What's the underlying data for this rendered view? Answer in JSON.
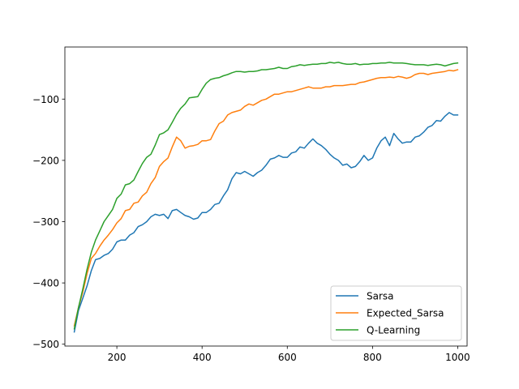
{
  "chart_data": {
    "type": "line",
    "title": "",
    "xlabel": "",
    "ylabel": "",
    "xlim": [
      78,
      1022
    ],
    "ylim": [
      -503,
      -15
    ],
    "xticks": [
      200,
      400,
      600,
      800,
      1000
    ],
    "yticks": [
      -500,
      -400,
      -300,
      -200,
      -100
    ],
    "xtick_labels": [
      "200",
      "400",
      "600",
      "800",
      "1000"
    ],
    "ytick_labels": [
      "−500",
      "−400",
      "−300",
      "−200",
      "−100"
    ],
    "grid": false,
    "legend": {
      "position": "lower-right"
    },
    "series": [
      {
        "name": "Sarsa",
        "color": "#1f77b4",
        "x": [
          100,
          110,
          120,
          130,
          140,
          150,
          160,
          170,
          180,
          190,
          200,
          210,
          220,
          230,
          240,
          250,
          260,
          270,
          280,
          290,
          300,
          310,
          320,
          330,
          340,
          350,
          360,
          370,
          380,
          390,
          400,
          410,
          420,
          430,
          440,
          450,
          460,
          470,
          480,
          490,
          500,
          510,
          520,
          530,
          540,
          550,
          560,
          570,
          580,
          590,
          600,
          610,
          620,
          630,
          640,
          650,
          660,
          670,
          680,
          690,
          700,
          710,
          720,
          730,
          740,
          750,
          760,
          770,
          780,
          790,
          800,
          810,
          820,
          830,
          840,
          850,
          860,
          870,
          880,
          890,
          900,
          910,
          920,
          930,
          940,
          950,
          960,
          970,
          980,
          990,
          1000
        ],
        "y": [
          -480,
          -445,
          -425,
          -405,
          -380,
          -362,
          -360,
          -355,
          -352,
          -345,
          -333,
          -330,
          -330,
          -322,
          -318,
          -308,
          -305,
          -300,
          -292,
          -288,
          -290,
          -288,
          -295,
          -282,
          -280,
          -285,
          -290,
          -292,
          -296,
          -294,
          -285,
          -285,
          -280,
          -272,
          -270,
          -258,
          -248,
          -230,
          -220,
          -222,
          -218,
          -222,
          -226,
          -220,
          -216,
          -208,
          -198,
          -196,
          -192,
          -195,
          -195,
          -188,
          -186,
          -178,
          -180,
          -172,
          -165,
          -172,
          -176,
          -182,
          -190,
          -196,
          -200,
          -208,
          -206,
          -212,
          -210,
          -202,
          -192,
          -200,
          -196,
          -180,
          -168,
          -162,
          -176,
          -156,
          -165,
          -172,
          -170,
          -170,
          -162,
          -160,
          -154,
          -146,
          -143,
          -135,
          -136,
          -128,
          -122,
          -126,
          -126
        ]
      },
      {
        "name": "Expected_Sarsa",
        "color": "#ff7f0e",
        "x": [
          100,
          110,
          120,
          130,
          140,
          150,
          160,
          170,
          180,
          190,
          200,
          210,
          220,
          230,
          240,
          250,
          260,
          270,
          280,
          290,
          300,
          310,
          320,
          330,
          340,
          350,
          360,
          370,
          380,
          390,
          400,
          410,
          420,
          430,
          440,
          450,
          460,
          470,
          480,
          490,
          500,
          510,
          520,
          530,
          540,
          550,
          560,
          570,
          580,
          590,
          600,
          610,
          620,
          630,
          640,
          650,
          660,
          670,
          680,
          690,
          700,
          710,
          720,
          730,
          740,
          750,
          760,
          770,
          780,
          790,
          800,
          810,
          820,
          830,
          840,
          850,
          860,
          870,
          880,
          890,
          900,
          910,
          920,
          930,
          940,
          950,
          960,
          970,
          980,
          990,
          1000
        ],
        "y": [
          -470,
          -440,
          -415,
          -385,
          -360,
          -352,
          -340,
          -330,
          -322,
          -313,
          -302,
          -295,
          -282,
          -280,
          -270,
          -268,
          -258,
          -252,
          -238,
          -228,
          -210,
          -202,
          -196,
          -178,
          -162,
          -168,
          -180,
          -177,
          -176,
          -174,
          -168,
          -168,
          -166,
          -152,
          -140,
          -136,
          -126,
          -122,
          -120,
          -118,
          -112,
          -108,
          -110,
          -106,
          -102,
          -100,
          -96,
          -92,
          -92,
          -90,
          -88,
          -88,
          -86,
          -84,
          -82,
          -80,
          -82,
          -82,
          -82,
          -80,
          -80,
          -78,
          -78,
          -78,
          -77,
          -76,
          -76,
          -73,
          -72,
          -70,
          -68,
          -66,
          -65,
          -65,
          -64,
          -65,
          -63,
          -64,
          -66,
          -64,
          -60,
          -58,
          -58,
          -60,
          -58,
          -57,
          -56,
          -55,
          -53,
          -54,
          -52
        ]
      },
      {
        "name": "Q-Learning",
        "color": "#2ca02c",
        "x": [
          100,
          110,
          120,
          130,
          140,
          150,
          160,
          170,
          180,
          190,
          200,
          210,
          220,
          230,
          240,
          250,
          260,
          270,
          280,
          290,
          300,
          310,
          320,
          330,
          340,
          350,
          360,
          370,
          380,
          390,
          400,
          410,
          420,
          430,
          440,
          450,
          460,
          470,
          480,
          490,
          500,
          510,
          520,
          530,
          540,
          550,
          560,
          570,
          580,
          590,
          600,
          610,
          620,
          630,
          640,
          650,
          660,
          670,
          680,
          690,
          700,
          710,
          720,
          730,
          740,
          750,
          760,
          770,
          780,
          790,
          800,
          810,
          820,
          830,
          840,
          850,
          860,
          870,
          880,
          890,
          900,
          910,
          920,
          930,
          940,
          950,
          960,
          970,
          980,
          990,
          1000
        ],
        "y": [
          -475,
          -440,
          -410,
          -378,
          -350,
          -330,
          -315,
          -300,
          -290,
          -280,
          -262,
          -255,
          -240,
          -238,
          -232,
          -218,
          -205,
          -195,
          -190,
          -175,
          -158,
          -155,
          -150,
          -138,
          -125,
          -115,
          -108,
          -98,
          -97,
          -96,
          -84,
          -74,
          -68,
          -66,
          -65,
          -62,
          -60,
          -57,
          -55,
          -55,
          -56,
          -55,
          -55,
          -54,
          -52,
          -52,
          -51,
          -50,
          -48,
          -50,
          -50,
          -47,
          -46,
          -44,
          -45,
          -44,
          -43,
          -43,
          -42,
          -42,
          -40,
          -41,
          -40,
          -42,
          -43,
          -43,
          -42,
          -44,
          -43,
          -43,
          -42,
          -42,
          -41,
          -41,
          -40,
          -41,
          -41,
          -41,
          -42,
          -43,
          -44,
          -44,
          -44,
          -45,
          -44,
          -43,
          -44,
          -46,
          -44,
          -42,
          -41
        ]
      }
    ]
  }
}
